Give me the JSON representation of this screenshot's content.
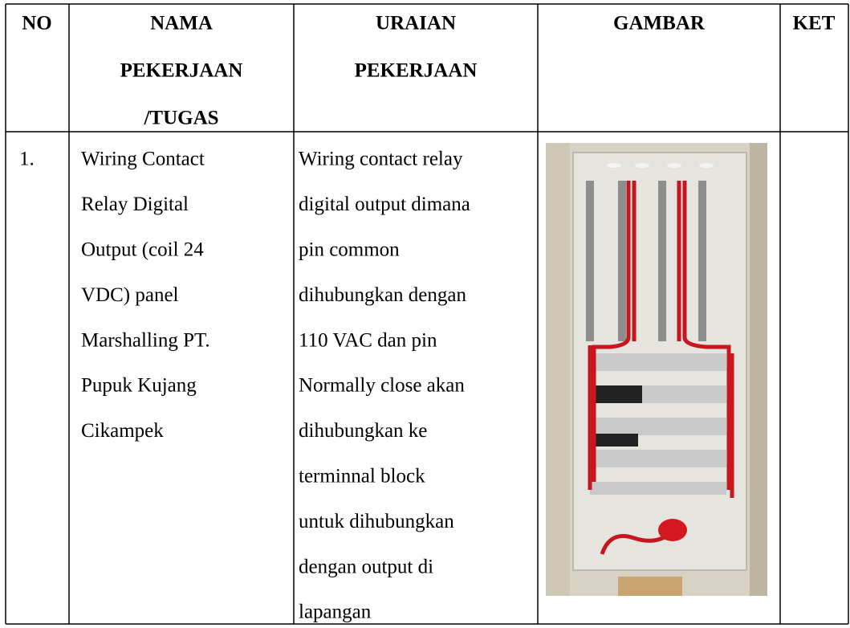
{
  "table": {
    "header": [
      [
        "NO"
      ],
      [
        "NAMA",
        "PEKERJAAN",
        "/TUGAS"
      ],
      [
        "URAIAN",
        "PEKERJAAN"
      ],
      [
        "GAMBAR"
      ],
      [
        "KET"
      ]
    ],
    "rows": [
      [
        [
          "1."
        ],
        [
          "Wiring Contact",
          "Relay Digital",
          "Output (coil 24",
          "VDC) panel",
          "Marshalling PT.",
          "Pupuk Kujang",
          "Cikampek"
        ],
        [
          "Wiring contact relay",
          "digital output dimana",
          "pin common",
          "dihubungkan dengan",
          "110 VAC dan pin",
          "Normally close akan",
          "dihubungkan ke",
          "terminnal block",
          "untuk dihubungkan",
          "dengan output di",
          "lapangan"
        ]
      ]
    ]
  }
}
